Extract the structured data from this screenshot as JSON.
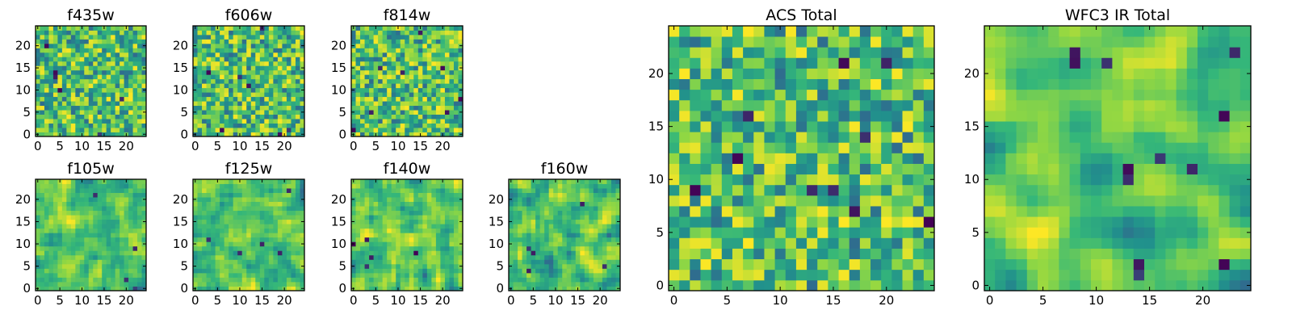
{
  "figure": {
    "colormap": "viridis",
    "colors": [
      "#440154",
      "#31688e",
      "#21918c",
      "#35b779",
      "#90d743",
      "#fde725"
    ],
    "background": "#ffffff"
  },
  "chart_data": [
    {
      "type": "heatmap",
      "title": "f435w",
      "grid": 25,
      "xlim": [
        0,
        24
      ],
      "ylim": [
        0,
        24
      ],
      "xticks": [
        0,
        5,
        10,
        15,
        20
      ],
      "yticks": [
        0,
        5,
        10,
        15,
        20
      ],
      "seed": 11,
      "smooth": 0,
      "dark_pixels": 6
    },
    {
      "type": "heatmap",
      "title": "f606w",
      "grid": 25,
      "xlim": [
        0,
        24
      ],
      "ylim": [
        0,
        24
      ],
      "xticks": [
        0,
        5,
        10,
        15,
        20
      ],
      "yticks": [
        0,
        5,
        10,
        15,
        20
      ],
      "seed": 23,
      "smooth": 0,
      "dark_pixels": 7
    },
    {
      "type": "heatmap",
      "title": "f814w",
      "grid": 25,
      "xlim": [
        0,
        24
      ],
      "ylim": [
        0,
        24
      ],
      "xticks": [
        0,
        5,
        10,
        15,
        20
      ],
      "yticks": [
        0,
        5,
        10,
        15,
        20
      ],
      "seed": 37,
      "smooth": 0,
      "dark_pixels": 8
    },
    {
      "type": "heatmap",
      "title": "f105w",
      "grid": 25,
      "xlim": [
        0,
        24
      ],
      "ylim": [
        0,
        24
      ],
      "xticks": [
        0,
        5,
        10,
        15,
        20
      ],
      "yticks": [
        0,
        5,
        10,
        15,
        20
      ],
      "seed": 41,
      "smooth": 1,
      "dark_pixels": 4
    },
    {
      "type": "heatmap",
      "title": "f125w",
      "grid": 25,
      "xlim": [
        0,
        24
      ],
      "ylim": [
        0,
        24
      ],
      "xticks": [
        0,
        5,
        10,
        15,
        20
      ],
      "yticks": [
        0,
        5,
        10,
        15,
        20
      ],
      "seed": 53,
      "smooth": 1,
      "dark_pixels": 5
    },
    {
      "type": "heatmap",
      "title": "f140w",
      "grid": 25,
      "xlim": [
        0,
        24
      ],
      "ylim": [
        0,
        24
      ],
      "xticks": [
        0,
        5,
        10,
        15,
        20
      ],
      "yticks": [
        0,
        5,
        10,
        15,
        20
      ],
      "seed": 67,
      "smooth": 1,
      "dark_pixels": 5
    },
    {
      "type": "heatmap",
      "title": "f160w",
      "grid": 25,
      "xlim": [
        0,
        24
      ],
      "ylim": [
        0,
        24
      ],
      "xticks": [
        0,
        5,
        10,
        15,
        20
      ],
      "yticks": [
        0,
        5,
        10,
        15,
        20
      ],
      "seed": 79,
      "smooth": 1,
      "dark_pixels": 5
    },
    {
      "type": "heatmap",
      "title": "ACS Total",
      "grid": 25,
      "xlim": [
        0,
        24
      ],
      "ylim": [
        0,
        24
      ],
      "xticks": [
        0,
        5,
        10,
        15,
        20
      ],
      "yticks": [
        0,
        5,
        10,
        15,
        20
      ],
      "seed": 97,
      "smooth": 0,
      "dark_pixels": 10
    },
    {
      "type": "heatmap",
      "title": "WFC3 IR Total",
      "grid": 25,
      "xlim": [
        0,
        24
      ],
      "ylim": [
        0,
        24
      ],
      "xticks": [
        0,
        5,
        10,
        15,
        20
      ],
      "yticks": [
        0,
        5,
        10,
        15,
        20
      ],
      "seed": 131,
      "smooth": 2,
      "dark_pixels": 12
    }
  ]
}
